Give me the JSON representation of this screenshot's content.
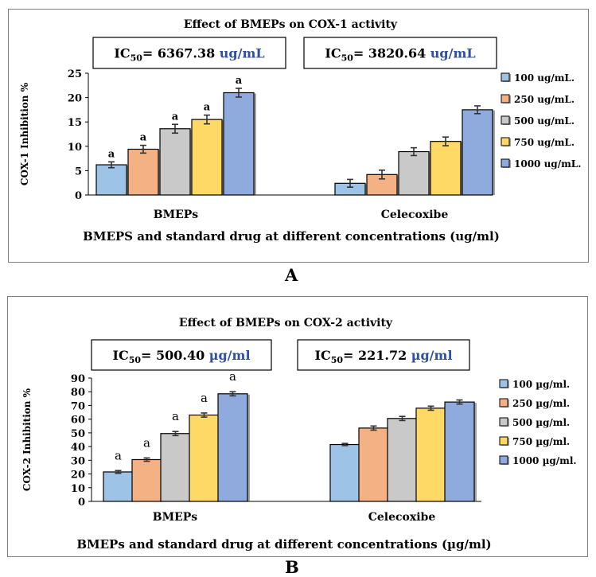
{
  "chart_data": [
    {
      "type": "bar",
      "panel_label": "A",
      "title": "Effect of BMEPs on COX-1 activity",
      "xlabel": "BMEPS and standard drug at different concentrations (ug/ml)",
      "ylabel": "COX-1 Inhibition %",
      "ylim": [
        0,
        25
      ],
      "yticks": [
        0,
        5,
        10,
        15,
        20,
        25
      ],
      "grid": false,
      "legend_position": "right",
      "categories": [
        "BMEPs",
        "Celecoxibe"
      ],
      "ic50": [
        {
          "prefix": "IC",
          "sub": "50",
          "value": "= 6367.38 ",
          "unit": "ug/mL"
        },
        {
          "prefix": "IC",
          "sub": "50",
          "value": "= 3820.64 ",
          "unit": "ug/mL"
        }
      ],
      "series": [
        {
          "name": "100 ug/mL.",
          "color": "#9dc3e6",
          "values": [
            6.2,
            2.4
          ],
          "errors": [
            0.6,
            0.8
          ],
          "sig": [
            "a",
            ""
          ]
        },
        {
          "name": "250 ug/mL.",
          "color": "#f4b183",
          "values": [
            9.4,
            4.2
          ],
          "errors": [
            0.8,
            0.9
          ],
          "sig": [
            "a",
            ""
          ]
        },
        {
          "name": "500 ug/mL.",
          "color": "#c9c9c9",
          "values": [
            13.6,
            8.9
          ],
          "errors": [
            0.9,
            0.8
          ],
          "sig": [
            "a",
            ""
          ]
        },
        {
          "name": "750 ug/mL.",
          "color": "#ffd966",
          "values": [
            15.5,
            11.0
          ],
          "errors": [
            0.9,
            0.9
          ],
          "sig": [
            "a",
            ""
          ]
        },
        {
          "name": "1000 ug/mL.",
          "color": "#8faadc",
          "values": [
            21.0,
            17.5
          ],
          "errors": [
            0.9,
            0.8
          ],
          "sig": [
            "a",
            ""
          ]
        }
      ]
    },
    {
      "type": "bar",
      "panel_label": "B",
      "title": "Effect of BMEPs on COX-2 activity",
      "xlabel": "BMEPs and standard drug at different concentrations (µg/ml)",
      "ylabel": "COX-2 Inhibition %",
      "ylim": [
        0,
        90
      ],
      "yticks": [
        0,
        10,
        20,
        30,
        40,
        50,
        60,
        70,
        80,
        90
      ],
      "grid": false,
      "legend_position": "right",
      "categories": [
        "BMEPs",
        "Celecoxibe"
      ],
      "ic50": [
        {
          "prefix": "IC",
          "sub": "50",
          "value": "= 500.40 ",
          "unit": "µg/ml"
        },
        {
          "prefix": "IC",
          "sub": "50",
          "value": "= 221.72 ",
          "unit": "µg/ml"
        }
      ],
      "series": [
        {
          "name": "100 µg/ml.",
          "color": "#9dc3e6",
          "values": [
            21.5,
            41.5
          ],
          "errors": [
            1.0,
            0.8
          ],
          "sig": [
            "a",
            ""
          ]
        },
        {
          "name": "250 µg/ml.",
          "color": "#f4b183",
          "values": [
            30.5,
            53.5
          ],
          "errors": [
            1.2,
            1.5
          ],
          "sig": [
            "a",
            ""
          ]
        },
        {
          "name": "500 µg/ml.",
          "color": "#c9c9c9",
          "values": [
            49.5,
            60.5
          ],
          "errors": [
            1.5,
            1.5
          ],
          "sig": [
            "a",
            ""
          ]
        },
        {
          "name": "750 µg/ml.",
          "color": "#ffd966",
          "values": [
            63.0,
            68.0
          ],
          "errors": [
            1.5,
            1.5
          ],
          "sig": [
            "a",
            ""
          ]
        },
        {
          "name": "1000 µg/ml.",
          "color": "#8faadc",
          "values": [
            78.5,
            72.5
          ],
          "errors": [
            1.5,
            1.5
          ],
          "sig": [
            "a",
            ""
          ]
        }
      ]
    }
  ]
}
